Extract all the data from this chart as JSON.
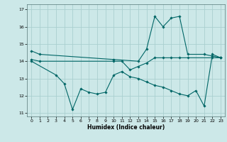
{
  "xlabel": "Humidex (Indice chaleur)",
  "bg_color": "#cce8e8",
  "grid_color": "#aacfcf",
  "line_color": "#006666",
  "xlim": [
    -0.5,
    23.5
  ],
  "ylim": [
    10.8,
    17.3
  ],
  "yticks": [
    11,
    12,
    13,
    14,
    15,
    16,
    17
  ],
  "xticks": [
    0,
    1,
    2,
    3,
    4,
    5,
    6,
    7,
    8,
    9,
    10,
    11,
    12,
    13,
    14,
    15,
    16,
    17,
    18,
    19,
    20,
    21,
    22,
    23
  ],
  "series": [
    {
      "x": [
        0,
        1,
        10,
        13,
        14,
        15,
        16,
        17,
        18,
        19,
        21,
        22,
        23
      ],
      "y": [
        14.6,
        14.4,
        14.1,
        14.0,
        14.7,
        16.6,
        16.0,
        16.5,
        16.6,
        14.4,
        14.4,
        14.3,
        14.2
      ]
    },
    {
      "x": [
        0,
        1,
        10,
        11,
        12,
        13,
        14,
        15,
        16,
        17,
        18,
        19,
        22,
        23
      ],
      "y": [
        14.1,
        14.0,
        14.0,
        14.0,
        13.5,
        13.7,
        13.9,
        14.2,
        14.2,
        14.2,
        14.2,
        14.2,
        14.2,
        14.2
      ]
    },
    {
      "x": [
        0,
        3,
        4,
        5,
        6,
        7,
        8,
        9,
        10,
        11,
        12,
        13,
        14,
        15,
        16,
        17,
        18,
        19,
        20,
        21,
        22,
        23
      ],
      "y": [
        14.0,
        13.2,
        12.7,
        11.2,
        12.4,
        12.2,
        12.1,
        12.2,
        13.2,
        13.4,
        13.1,
        13.0,
        12.8,
        12.6,
        12.5,
        12.3,
        12.1,
        12.0,
        12.3,
        11.4,
        14.4,
        14.2
      ]
    }
  ]
}
